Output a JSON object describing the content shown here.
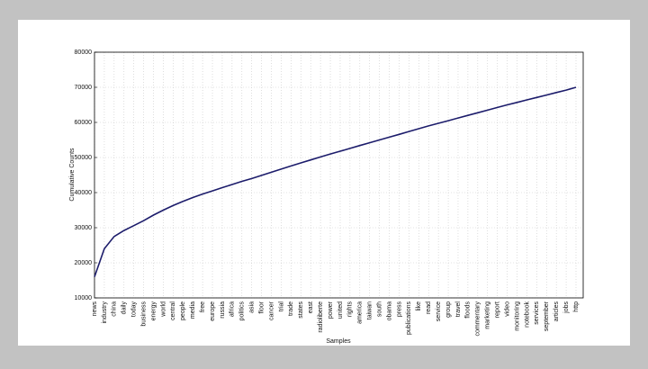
{
  "chart_data": {
    "type": "line",
    "xlabel": "Samples",
    "ylabel": "Cumulative Counts",
    "categories": [
      "news",
      "industry",
      "china",
      "daily",
      "today",
      "business",
      "energy",
      "world",
      "central",
      "people",
      "media",
      "free",
      "europe",
      "russia",
      "africa",
      "politics",
      "asia",
      "floor",
      "cancer",
      "trial",
      "trade",
      "states",
      "east",
      "radioliberte",
      "power",
      "united",
      "rights",
      "america",
      "taiwan",
      "south",
      "obama",
      "press",
      "publications",
      "like",
      "read",
      "service",
      "group",
      "travel",
      "floods",
      "commentary",
      "marketing",
      "report",
      "video",
      "monitoring",
      "notebook",
      "services",
      "september",
      "articles",
      "jobs",
      "http"
    ],
    "values": [
      16000,
      24000,
      27500,
      29200,
      30600,
      32000,
      33600,
      35000,
      36300,
      37500,
      38600,
      39600,
      40500,
      41400,
      42300,
      43200,
      44000,
      44900,
      45800,
      46700,
      47600,
      48450,
      49300,
      50150,
      51000,
      51800,
      52600,
      53400,
      54200,
      55000,
      55800,
      56600,
      57400,
      58200,
      59000,
      59750,
      60500,
      61250,
      62000,
      62750,
      63500,
      64250,
      65000,
      65700,
      66400,
      67100,
      67800,
      68500,
      69200,
      70000
    ],
    "color": "#1c1c6b",
    "ylim": [
      10000,
      80000
    ],
    "yticks": [
      10000,
      20000,
      30000,
      40000,
      50000,
      60000,
      70000,
      80000
    ],
    "grid": true
  }
}
